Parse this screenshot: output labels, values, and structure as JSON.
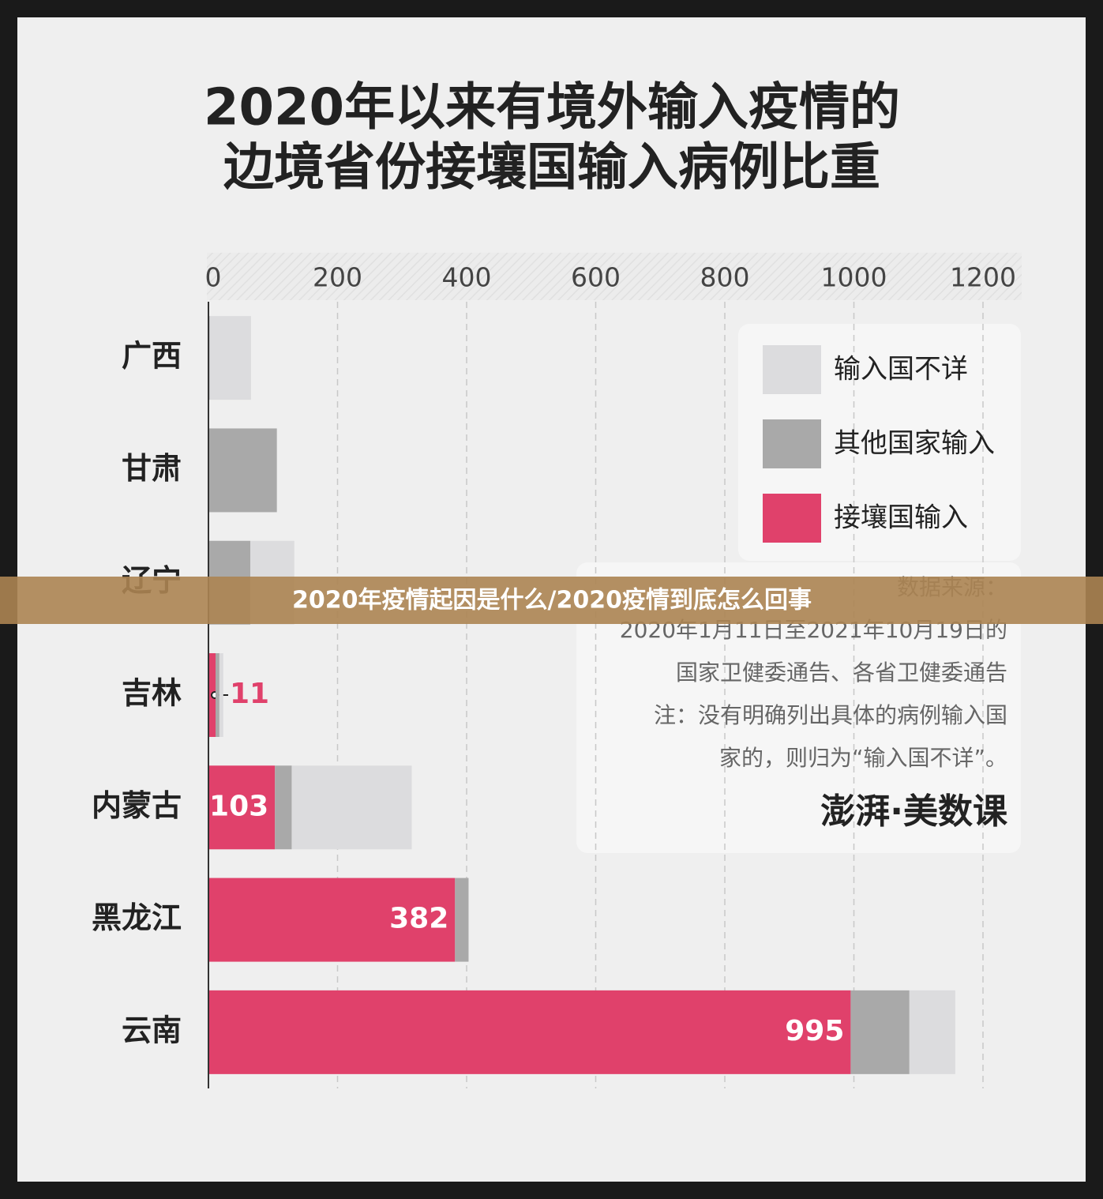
{
  "chart_data": {
    "type": "bar",
    "orientation": "horizontal",
    "stacked": true,
    "title": [
      "2020年以来有境外输入疫情的",
      "边境省份接壤国输入病例比重"
    ],
    "categories": [
      "广西",
      "甘肃",
      "辽宁",
      "吉林",
      "内蒙古",
      "黑龙江",
      "云南"
    ],
    "series": [
      {
        "name": "接壤国输入",
        "color": "#e0416b",
        "values": [
          0,
          0,
          0,
          11,
          103,
          382,
          995
        ]
      },
      {
        "name": "其他国家输入",
        "color": "#a9a9a9",
        "values": [
          2,
          106,
          65,
          6,
          26,
          21,
          91
        ]
      },
      {
        "name": "输入国不详",
        "color": "#dcdcde",
        "values": [
          64,
          0,
          68,
          6,
          186,
          0,
          71
        ]
      }
    ],
    "xlim": [
      0,
      1200
    ],
    "xticks": [
      0,
      200,
      400,
      600,
      800,
      1000,
      1200
    ],
    "grid": true,
    "legend": "top-right",
    "source": [
      "数据来源：",
      "2020年1月11日至2021年10月19日的",
      "国家卫健委通告、各省卫健委通告",
      "注：没有明确列出具体的病例输入国",
      "家的，则归为“输入国不详”。"
    ],
    "logo": "澎湃·美数课"
  },
  "banner": "2020年疫情起因是什么/2020疫情到底怎么回事"
}
